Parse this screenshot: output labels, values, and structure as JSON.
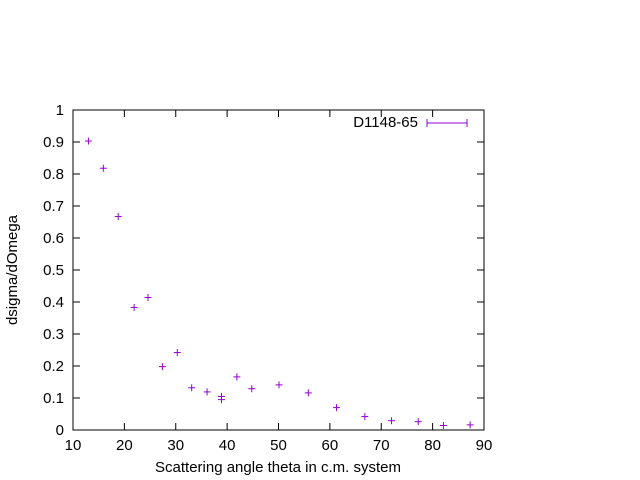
{
  "chart_data": {
    "type": "scatter",
    "title": "",
    "xlabel": "Scattering angle theta in c.m. system",
    "ylabel": "dsigma/dOmega",
    "xlim": [
      10,
      90
    ],
    "ylim": [
      0,
      1
    ],
    "xticks": [
      "10",
      "20",
      "30",
      "40",
      "50",
      "60",
      "70",
      "80",
      "90"
    ],
    "yticks": [
      "0",
      "0.1",
      "0.2",
      "0.3",
      "0.4",
      "0.5",
      "0.6",
      "0.7",
      "0.8",
      "0.9",
      "1"
    ],
    "grid": false,
    "legend_position": "top-right",
    "series": [
      {
        "name": "D1148-65",
        "color": "#9400d3",
        "points": [
          {
            "x": 13.0,
            "y": 0.903
          },
          {
            "x": 15.9,
            "y": 0.818
          },
          {
            "x": 18.8,
            "y": 0.667
          },
          {
            "x": 21.9,
            "y": 0.383
          },
          {
            "x": 24.6,
            "y": 0.414
          },
          {
            "x": 27.4,
            "y": 0.198
          },
          {
            "x": 30.3,
            "y": 0.242
          },
          {
            "x": 33.1,
            "y": 0.132
          },
          {
            "x": 36.1,
            "y": 0.119
          },
          {
            "x": 38.9,
            "y": 0.105
          },
          {
            "x": 38.9,
            "y": 0.095
          },
          {
            "x": 41.9,
            "y": 0.166
          },
          {
            "x": 44.8,
            "y": 0.129
          },
          {
            "x": 50.1,
            "y": 0.141
          },
          {
            "x": 55.8,
            "y": 0.116
          },
          {
            "x": 61.3,
            "y": 0.07
          },
          {
            "x": 66.8,
            "y": 0.042
          },
          {
            "x": 72.0,
            "y": 0.029
          },
          {
            "x": 77.2,
            "y": 0.026
          },
          {
            "x": 82.1,
            "y": 0.014
          },
          {
            "x": 87.3,
            "y": 0.016
          }
        ]
      }
    ]
  }
}
